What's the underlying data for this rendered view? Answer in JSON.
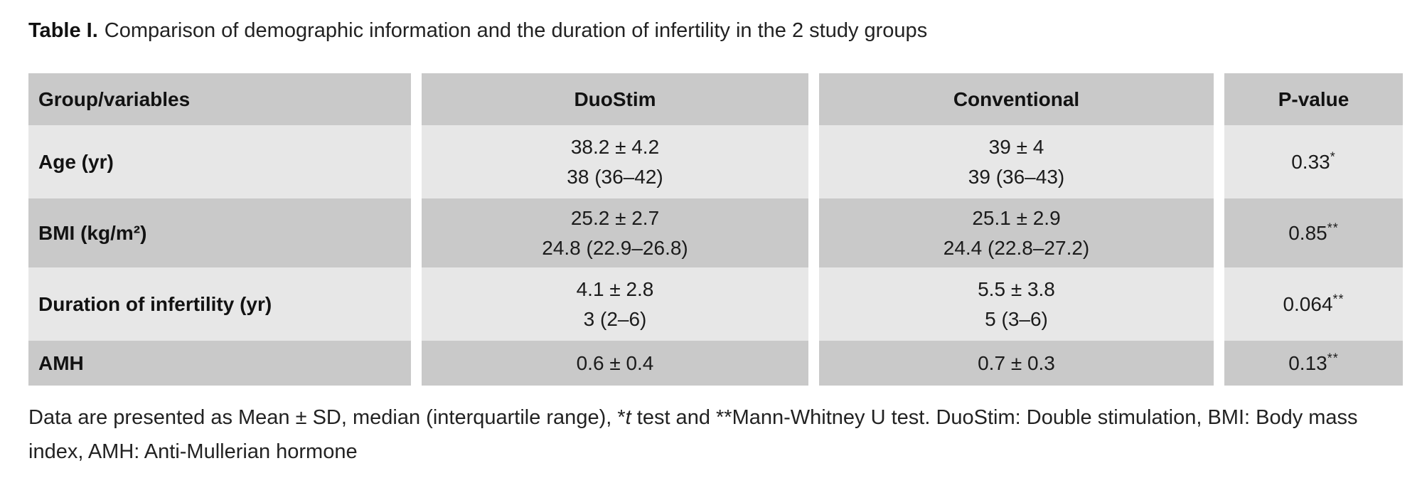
{
  "title": {
    "label": "Table I.",
    "text": "Comparison of demographic information and the duration of infertility in the 2 study groups"
  },
  "colors": {
    "row_dark": "#c9c9c9",
    "row_light": "#e7e7e7",
    "background": "#ffffff",
    "text": "#1b1b1b"
  },
  "table": {
    "headers": {
      "variable": "Group/variables",
      "duostim": "DuoStim",
      "conventional": "Conventional",
      "p_value": "P-value"
    },
    "rows": [
      {
        "variable": "Age (yr)",
        "duostim": [
          "38.2 ± 4.2",
          "38 (36–42)"
        ],
        "conventional": [
          "39 ± 4",
          "39 (36–43)"
        ],
        "p_value": "0.33",
        "p_marker": "*"
      },
      {
        "variable": "BMI (kg/m²)",
        "duostim": [
          "25.2 ± 2.7",
          "24.8 (22.9–26.8)"
        ],
        "conventional": [
          "25.1 ± 2.9",
          "24.4 (22.8–27.2)"
        ],
        "p_value": "0.85",
        "p_marker": "**"
      },
      {
        "variable": "Duration of infertility (yr)",
        "duostim": [
          "4.1 ± 2.8",
          "3 (2–6)"
        ],
        "conventional": [
          "5.5 ± 3.8",
          "5 (3–6)"
        ],
        "p_value": "0.064",
        "p_marker": "**"
      },
      {
        "variable": "AMH",
        "duostim": [
          "0.6 ± 0.4"
        ],
        "conventional": [
          "0.7 ± 0.3"
        ],
        "p_value": "0.13",
        "p_marker": "**"
      }
    ]
  },
  "footnote": {
    "part1": "Data are presented as Mean ± SD, median (interquartile range), *",
    "italic_t": "t",
    "part2": " test and **Mann-Whitney U test. DuoStim: Double stimulation, BMI: Body mass index, AMH: Anti-Mullerian hormone"
  }
}
